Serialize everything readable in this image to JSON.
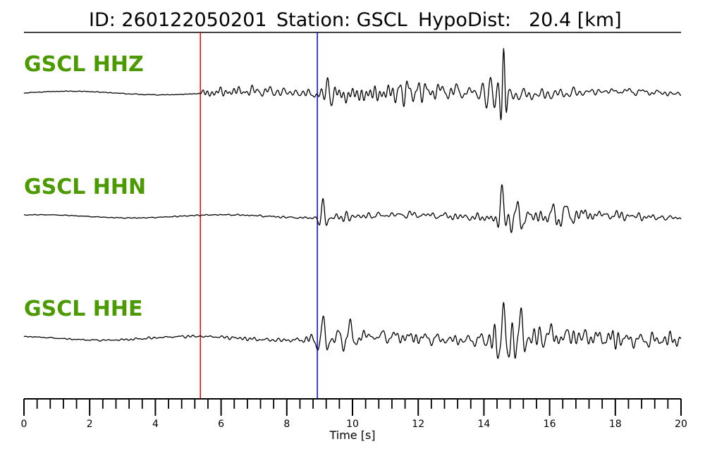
{
  "header": {
    "id_text": "ID: 260122050201",
    "station_text": "Station: GSCL",
    "hypodist_text": "HypoDist:",
    "hypodist_value": "20.4 [km]"
  },
  "colors": {
    "channel_label": "#4a9a00",
    "p_pick": "#ff0000",
    "s_pick": "#0000ff",
    "trace": "#000000"
  },
  "chart_data": {
    "type": "line",
    "xlabel": "Time [s]",
    "xlim": [
      0,
      20
    ],
    "major_ticks": [
      0,
      2,
      4,
      6,
      8,
      10,
      12,
      14,
      16,
      18,
      20
    ],
    "minor_tick_step": 0.4,
    "picks": [
      {
        "phase": "P",
        "time": 5.37,
        "color": "#ff0000"
      },
      {
        "phase": "S",
        "time": 8.93,
        "color": "#0000ff"
      }
    ],
    "series": [
      {
        "name": "GSCL HHZ",
        "features": [
          {
            "t": 9.25,
            "a": 0.9,
            "f": 4,
            "w": 0.1
          },
          {
            "t": 11.7,
            "a": 0.4,
            "f": 3.5,
            "w": 0.5
          },
          {
            "t": 14.6,
            "a": 2.2,
            "f": 5,
            "w": 0.1
          },
          {
            "t": 14.2,
            "a": 0.7,
            "f": 4,
            "w": 0.3
          }
        ],
        "env": [
          [
            0,
            0.02
          ],
          [
            5.3,
            0.02
          ],
          [
            5.5,
            0.25
          ],
          [
            8.9,
            0.28
          ],
          [
            9.5,
            0.4
          ],
          [
            11.0,
            0.35
          ],
          [
            12.5,
            0.38
          ],
          [
            14.0,
            0.45
          ],
          [
            15.0,
            0.4
          ],
          [
            17,
            0.25
          ],
          [
            20,
            0.15
          ]
        ],
        "peak_positive": 1.0
      },
      {
        "name": "GSCL HHN",
        "features": [
          {
            "t": 9.1,
            "a": 0.9,
            "f": 3.8,
            "w": 0.12
          },
          {
            "t": 14.55,
            "a": 1.8,
            "f": 3.2,
            "w": 0.12
          },
          {
            "t": 15.0,
            "a": 0.8,
            "f": 3,
            "w": 0.3
          },
          {
            "t": 16.5,
            "a": 0.4,
            "f": 2.5,
            "w": 0.5
          }
        ],
        "env": [
          [
            0,
            0.02
          ],
          [
            5.3,
            0.03
          ],
          [
            8.9,
            0.06
          ],
          [
            9.5,
            0.28
          ],
          [
            11,
            0.25
          ],
          [
            13.5,
            0.2
          ],
          [
            14.3,
            0.3
          ],
          [
            15.5,
            0.45
          ],
          [
            17,
            0.38
          ],
          [
            18,
            0.22
          ],
          [
            20,
            0.2
          ]
        ],
        "peak_positive": 1.0
      },
      {
        "name": "GSCL HHE",
        "features": [
          {
            "t": 9.1,
            "a": 0.8,
            "f": 3,
            "w": 0.2
          },
          {
            "t": 9.9,
            "a": 0.5,
            "f": 2.5,
            "w": 0.3
          },
          {
            "t": 14.6,
            "a": 1.7,
            "f": 3.2,
            "w": 0.18
          },
          {
            "t": 15.1,
            "a": 1.2,
            "f": 3,
            "w": 0.18
          },
          {
            "t": 16.0,
            "a": 0.5,
            "f": 2.5,
            "w": 0.3
          }
        ],
        "env": [
          [
            0,
            0.02
          ],
          [
            5.3,
            0.05
          ],
          [
            8.5,
            0.1
          ],
          [
            9.3,
            0.38
          ],
          [
            10.5,
            0.28
          ],
          [
            12,
            0.25
          ],
          [
            13.6,
            0.25
          ],
          [
            14.5,
            0.6
          ],
          [
            15.5,
            0.5
          ],
          [
            17,
            0.35
          ],
          [
            20,
            0.28
          ]
        ],
        "peak_positive": 1.0
      }
    ]
  }
}
